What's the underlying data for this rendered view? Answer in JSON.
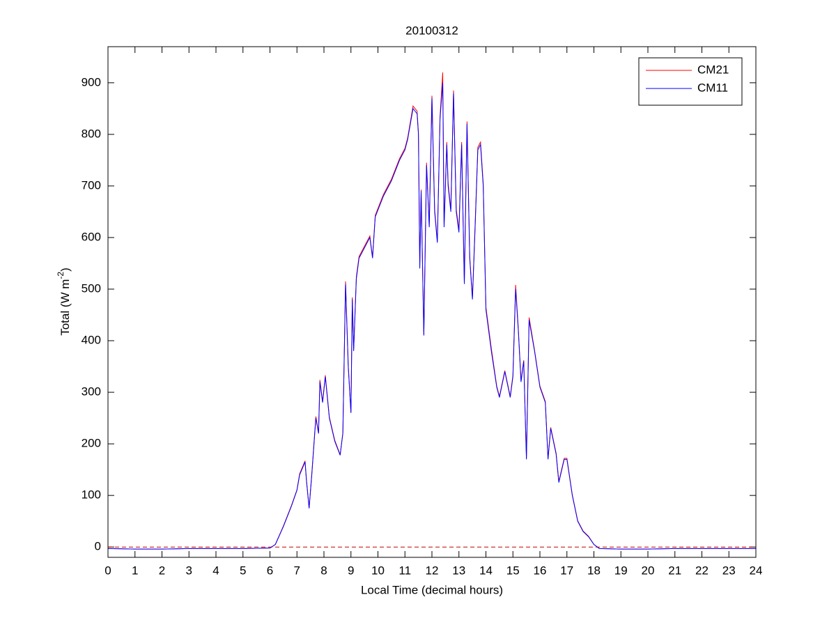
{
  "chart_data": {
    "type": "line",
    "title": "20100312",
    "xlabel": "Local Time (decimal hours)",
    "ylabel_parts": [
      "Total (W m",
      "-2",
      ")"
    ],
    "xlim": [
      0,
      24
    ],
    "xticks": [
      0,
      1,
      2,
      3,
      4,
      5,
      6,
      7,
      8,
      9,
      10,
      11,
      12,
      13,
      14,
      15,
      16,
      17,
      18,
      19,
      20,
      21,
      22,
      23,
      24
    ],
    "ylim": [
      -20,
      970
    ],
    "yticks": [
      0,
      100,
      200,
      300,
      400,
      500,
      600,
      700,
      800,
      900
    ],
    "reference_line": {
      "value": 0,
      "color": "#c00000"
    },
    "legend": "upper right",
    "x": [
      0,
      1,
      2,
      3,
      4,
      5,
      6,
      6.2,
      6.5,
      6.8,
      7,
      7.1,
      7.3,
      7.35,
      7.45,
      7.55,
      7.7,
      7.8,
      7.85,
      7.95,
      8.05,
      8.2,
      8.4,
      8.6,
      8.7,
      8.8,
      8.9,
      9,
      9.05,
      9.1,
      9.2,
      9.3,
      9.5,
      9.7,
      9.8,
      9.9,
      10.2,
      10.5,
      10.8,
      11,
      11.1,
      11.3,
      11.45,
      11.5,
      11.55,
      11.6,
      11.7,
      11.8,
      11.9,
      12,
      12.1,
      12.2,
      12.3,
      12.4,
      12.45,
      12.55,
      12.6,
      12.7,
      12.8,
      12.9,
      13,
      13.1,
      13.2,
      13.3,
      13.4,
      13.5,
      13.6,
      13.7,
      13.8,
      13.9,
      14,
      14.2,
      14.4,
      14.5,
      14.7,
      14.9,
      15,
      15.1,
      15.2,
      15.3,
      15.4,
      15.5,
      15.6,
      15.8,
      16,
      16.2,
      16.3,
      16.4,
      16.6,
      16.7,
      16.9,
      17,
      17.2,
      17.4,
      17.6,
      17.8,
      18,
      18.2,
      19,
      20,
      21,
      22,
      23,
      24
    ],
    "series": [
      {
        "name": "CM21",
        "color": "#ff0000",
        "values": [
          -3,
          -4,
          -4,
          -3,
          -3,
          -3,
          -2,
          5,
          41,
          81,
          111,
          142,
          167,
          131,
          76,
          142,
          253,
          222,
          324,
          282,
          333,
          252,
          207,
          179,
          221,
          515,
          352,
          261,
          484,
          382,
          524,
          563,
          583,
          603,
          562,
          643,
          683,
          713,
          753,
          773,
          793,
          855,
          845,
          803,
          545,
          693,
          412,
          745,
          622,
          875,
          655,
          593,
          835,
          920,
          625,
          785,
          705,
          655,
          885,
          655,
          615,
          785,
          512,
          825,
          563,
          483,
          625,
          775,
          785,
          705,
          465,
          385,
          312,
          292,
          342,
          292,
          333,
          508,
          423,
          323,
          362,
          172,
          445,
          382,
          312,
          282,
          172,
          232,
          182,
          127,
          172,
          172,
          101,
          51,
          31,
          21,
          5,
          -3,
          -4,
          -4,
          -3,
          -3,
          -3,
          -3
        ]
      },
      {
        "name": "CM11",
        "color": "#0000ff",
        "values": [
          -3,
          -4,
          -4,
          -3,
          -3,
          -3,
          -2,
          5,
          40,
          80,
          110,
          140,
          165,
          130,
          75,
          140,
          250,
          220,
          320,
          280,
          330,
          250,
          205,
          178,
          220,
          510,
          350,
          260,
          480,
          380,
          520,
          560,
          580,
          600,
          560,
          640,
          680,
          710,
          750,
          770,
          790,
          850,
          840,
          800,
          540,
          690,
          410,
          740,
          620,
          870,
          650,
          590,
          830,
          900,
          620,
          780,
          700,
          650,
          880,
          650,
          610,
          780,
          510,
          820,
          560,
          480,
          620,
          770,
          780,
          700,
          460,
          380,
          310,
          290,
          340,
          290,
          330,
          500,
          420,
          320,
          360,
          170,
          440,
          380,
          310,
          280,
          170,
          230,
          180,
          125,
          170,
          170,
          100,
          50,
          30,
          20,
          5,
          -3,
          -4,
          -4,
          -3,
          -3,
          -3,
          -3
        ]
      }
    ]
  }
}
